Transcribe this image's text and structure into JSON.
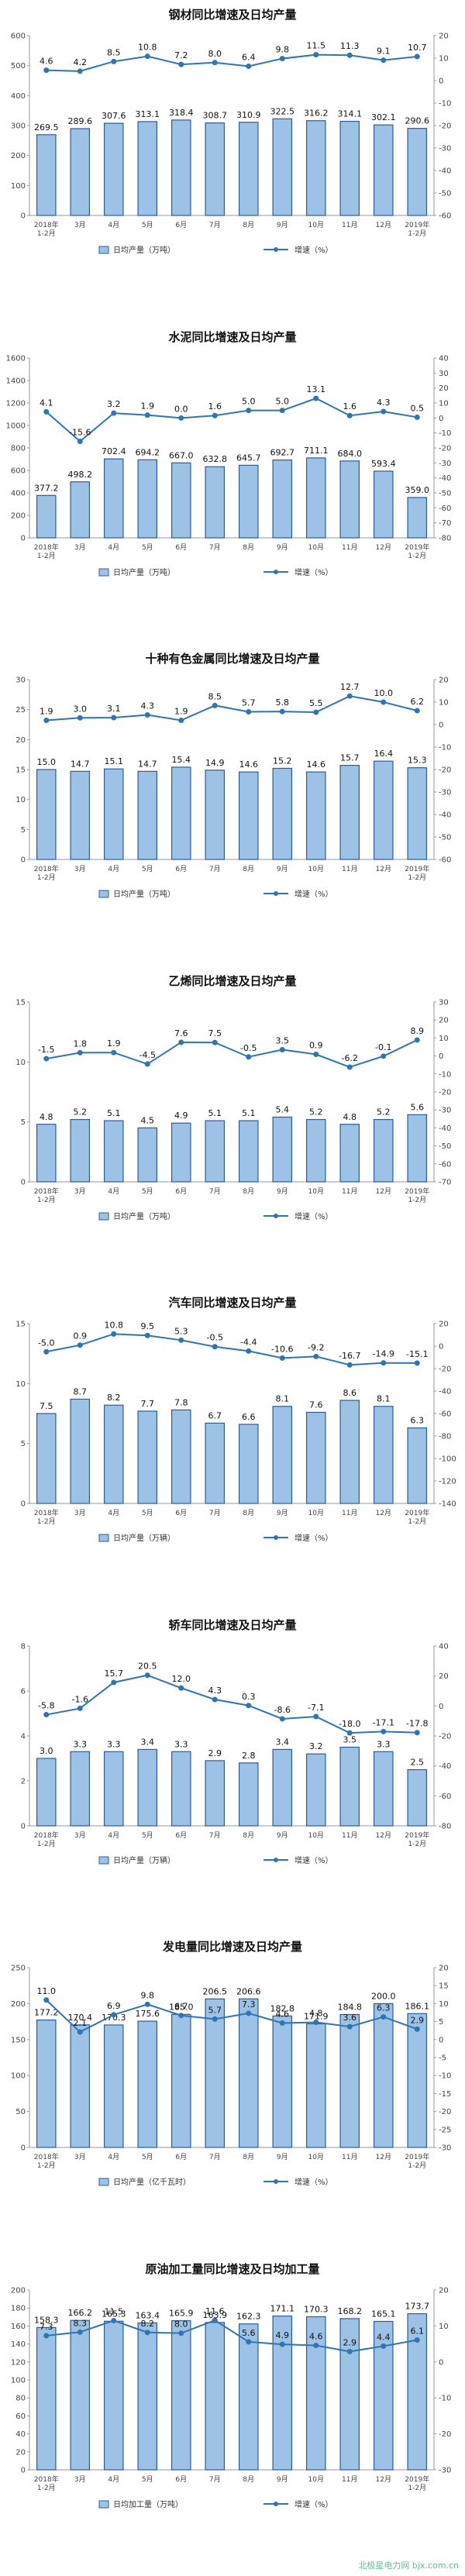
{
  "footer": {
    "watermark": "北极星电力网 bjx.com.cn",
    "color": "#2aa66a"
  },
  "colors": {
    "bar_fill": "#9cc3e6",
    "bar_stroke": "#2b5c9e",
    "line": "#2e75b6",
    "text": "#111111"
  },
  "chart_data": [
    {
      "type": "bar-line",
      "title": "钢材同比增速及日均产量",
      "categories": [
        "2018年\n1-2月",
        "3月",
        "4月",
        "5月",
        "6月",
        "7月",
        "8月",
        "9月",
        "10月",
        "11月",
        "12月",
        "2019年\n1-2月"
      ],
      "series": [
        {
          "name": "日均产量（万吨）",
          "type": "bar",
          "axis": "left",
          "values": [
            269.5,
            289.6,
            307.6,
            313.1,
            318.4,
            308.7,
            310.9,
            322.5,
            316.2,
            314.1,
            302.1,
            290.6
          ]
        },
        {
          "name": "增速（%）",
          "type": "line",
          "axis": "right",
          "values": [
            4.6,
            4.2,
            8.5,
            10.8,
            7.2,
            8.0,
            6.4,
            9.8,
            11.5,
            11.3,
            9.1,
            10.7
          ]
        }
      ],
      "y_left": {
        "min": 0,
        "max": 600,
        "step": 100
      },
      "y_right": {
        "min": -60,
        "max": 20,
        "step": 10
      },
      "legend": "bottom"
    },
    {
      "type": "bar-line",
      "title": "水泥同比增速及日均产量",
      "categories": [
        "2018年\n1-2月",
        "3月",
        "4月",
        "5月",
        "6月",
        "7月",
        "8月",
        "9月",
        "10月",
        "11月",
        "12月",
        "2019年\n1-2月"
      ],
      "series": [
        {
          "name": "日均产量（万吨）",
          "type": "bar",
          "axis": "left",
          "values": [
            377.2,
            498.2,
            702.4,
            694.2,
            667.0,
            632.8,
            645.7,
            692.7,
            711.1,
            684.0,
            593.4,
            359.0
          ]
        },
        {
          "name": "增速（%）",
          "type": "line",
          "axis": "right",
          "values": [
            4.1,
            -15.6,
            3.2,
            1.9,
            0.0,
            1.6,
            5.0,
            5.0,
            13.1,
            1.6,
            4.3,
            0.5
          ]
        }
      ],
      "y_left": {
        "min": 0,
        "max": 1600,
        "step": 200
      },
      "y_right": {
        "min": -80,
        "max": 40,
        "step": 10
      },
      "legend": "bottom"
    },
    {
      "type": "bar-line",
      "title": "十种有色金属同比增速及日均产量",
      "categories": [
        "2018年\n1-2月",
        "3月",
        "4月",
        "5月",
        "6月",
        "7月",
        "8月",
        "9月",
        "10月",
        "11月",
        "12月",
        "2019年\n1-2月"
      ],
      "series": [
        {
          "name": "日均产量（万吨）",
          "type": "bar",
          "axis": "left",
          "values": [
            15.0,
            14.7,
            15.1,
            14.7,
            15.4,
            14.9,
            14.6,
            15.2,
            14.6,
            15.7,
            16.4,
            15.3
          ]
        },
        {
          "name": "增速（%）",
          "type": "line",
          "axis": "right",
          "values": [
            1.9,
            3.0,
            3.1,
            4.3,
            1.9,
            8.5,
            5.7,
            5.8,
            5.5,
            12.7,
            10.0,
            6.2
          ]
        }
      ],
      "y_left": {
        "min": 0,
        "max": 30,
        "step": 5
      },
      "y_right": {
        "min": -60,
        "max": 20,
        "step": 10
      },
      "legend": "bottom"
    },
    {
      "type": "bar-line",
      "title": "乙烯同比增速及日均产量",
      "categories": [
        "2018年\n1-2月",
        "3月",
        "4月",
        "5月",
        "6月",
        "7月",
        "8月",
        "9月",
        "10月",
        "11月",
        "12月",
        "2019年\n1-2月"
      ],
      "series": [
        {
          "name": "日均产量（万吨）",
          "type": "bar",
          "axis": "left",
          "values": [
            4.8,
            5.2,
            5.1,
            4.5,
            4.9,
            5.1,
            5.1,
            5.4,
            5.2,
            4.8,
            5.2,
            5.6
          ]
        },
        {
          "name": "增速（%）",
          "type": "line",
          "axis": "right",
          "values": [
            -1.5,
            1.8,
            1.9,
            -4.5,
            7.6,
            7.5,
            -0.5,
            3.5,
            0.9,
            -6.2,
            -0.1,
            8.9
          ]
        }
      ],
      "y_left": {
        "min": 0,
        "max": 15,
        "step": 5
      },
      "y_right": {
        "min": -70,
        "max": 30,
        "step": 10
      },
      "legend": "bottom"
    },
    {
      "type": "bar-line",
      "title": "汽车同比增速及日均产量",
      "categories": [
        "2018年\n1-2月",
        "3月",
        "4月",
        "5月",
        "6月",
        "7月",
        "8月",
        "9月",
        "10月",
        "11月",
        "12月",
        "2019年\n1-2月"
      ],
      "series": [
        {
          "name": "日均产量（万辆）",
          "type": "bar",
          "axis": "left",
          "values": [
            7.5,
            8.7,
            8.2,
            7.7,
            7.8,
            6.7,
            6.6,
            8.1,
            7.6,
            8.6,
            8.1,
            6.3
          ]
        },
        {
          "name": "增速（%）",
          "type": "line",
          "axis": "right",
          "values": [
            -5.0,
            0.9,
            10.8,
            9.5,
            5.3,
            -0.5,
            -4.4,
            -10.6,
            -9.2,
            -16.7,
            -14.9,
            -15.1
          ]
        }
      ],
      "y_left": {
        "min": 0,
        "max": 15,
        "step": 5
      },
      "y_right": {
        "min": -140,
        "max": 20,
        "step": 20
      },
      "legend": "bottom"
    },
    {
      "type": "bar-line",
      "title": "轿车同比增速及日均产量",
      "categories": [
        "2018年\n1-2月",
        "3月",
        "4月",
        "5月",
        "6月",
        "7月",
        "8月",
        "9月",
        "10月",
        "11月",
        "12月",
        "2019年\n1-2月"
      ],
      "series": [
        {
          "name": "日均产量（万辆）",
          "type": "bar",
          "axis": "left",
          "values": [
            3.0,
            3.3,
            3.3,
            3.4,
            3.3,
            2.9,
            2.8,
            3.4,
            3.2,
            3.5,
            3.3,
            2.5
          ]
        },
        {
          "name": "增速（%）",
          "type": "line",
          "axis": "right",
          "values": [
            -5.8,
            -1.6,
            15.7,
            20.5,
            12.0,
            4.3,
            0.3,
            -8.6,
            -7.1,
            -18.0,
            -17.1,
            -17.8
          ]
        }
      ],
      "y_left": {
        "min": 0,
        "max": 8,
        "step": 2
      },
      "y_right": {
        "min": -80,
        "max": 40,
        "step": 20
      },
      "legend": "bottom"
    },
    {
      "type": "bar-line",
      "title": "发电量同比增速及日均产量",
      "categories": [
        "2018年\n1-2月",
        "3月",
        "4月",
        "5月",
        "6月",
        "7月",
        "8月",
        "9月",
        "10月",
        "11月",
        "12月",
        "2019年\n1-2月"
      ],
      "series": [
        {
          "name": "日均产量（亿千瓦时）",
          "type": "bar",
          "axis": "left",
          "values": [
            177.2,
            170.4,
            170.3,
            175.6,
            185.0,
            206.5,
            206.6,
            182.8,
            171.9,
            184.8,
            200.0,
            186.1
          ]
        },
        {
          "name": "增速（%）",
          "type": "line",
          "axis": "right",
          "values": [
            11.0,
            2.1,
            6.9,
            9.8,
            6.7,
            5.7,
            7.3,
            4.6,
            4.8,
            3.6,
            6.3,
            2.9
          ]
        }
      ],
      "y_left": {
        "min": 0,
        "max": 250,
        "step": 50
      },
      "y_right": {
        "min": -30,
        "max": 20,
        "step": 5
      },
      "legend": "bottom"
    },
    {
      "type": "bar-line",
      "title": "原油加工量同比增速及日均加工量",
      "categories": [
        "2018年\n1-2月",
        "3月",
        "4月",
        "5月",
        "6月",
        "7月",
        "8月",
        "9月",
        "10月",
        "11月",
        "12月",
        "2019年\n1-2月"
      ],
      "series": [
        {
          "name": "日均加工量（万吨）",
          "type": "bar",
          "axis": "left",
          "values": [
            158.3,
            166.2,
            165.3,
            163.4,
            165.9,
            163.9,
            162.3,
            171.1,
            170.3,
            168.2,
            165.1,
            173.7
          ]
        },
        {
          "name": "增速（%）",
          "type": "line",
          "axis": "right",
          "values": [
            7.3,
            8.3,
            11.5,
            8.2,
            8.0,
            11.6,
            5.6,
            4.9,
            4.6,
            2.9,
            4.4,
            6.1
          ]
        }
      ],
      "y_left": {
        "min": 0,
        "max": 200,
        "step": 20
      },
      "y_right": {
        "min": -30,
        "max": 20,
        "step": 10
      },
      "legend": "bottom"
    }
  ]
}
